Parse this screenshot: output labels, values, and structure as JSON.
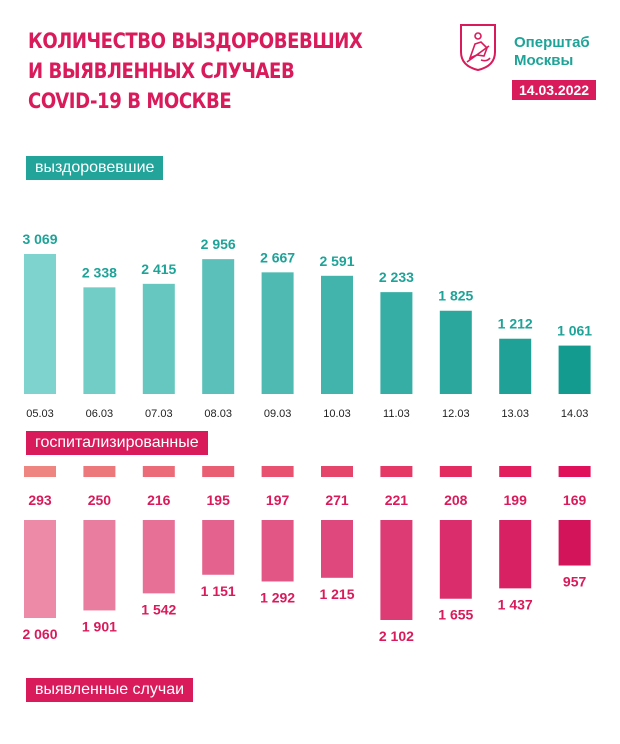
{
  "header": {
    "title_lines": [
      "Количество выздоровевших",
      "и выявленных случаев",
      "COVID-19 в Москве"
    ],
    "logo_line1": "Оперштаб",
    "logo_line2": "Москвы",
    "logo_icon": "moscow-coat-of-arms-icon",
    "date": "14.03.2022"
  },
  "labels": {
    "recovered": "выздоровевшие",
    "hospitalized": "госпитализированные",
    "cases": "выявленные случаи"
  },
  "colors": {
    "brand_pink": "#d91b5c",
    "brand_teal": "#1ea398",
    "recovered_start": "#7ed3ce",
    "recovered_end": "#139b90",
    "pink_start": "#ec8aa8",
    "pink_end": "#d4145a",
    "hosp_start": "#ee8580",
    "hosp_end": "#e0115a"
  },
  "chart_data": [
    {
      "type": "bar",
      "title": "выздоровевшие",
      "categories": [
        "05.03",
        "06.03",
        "07.03",
        "08.03",
        "09.03",
        "10.03",
        "11.03",
        "12.03",
        "13.03",
        "14.03"
      ],
      "values": [
        3069,
        2338,
        2415,
        2956,
        2667,
        2591,
        2233,
        1825,
        1212,
        1061
      ],
      "value_labels": [
        "3 069",
        "2 338",
        "2 415",
        "2 956",
        "2 667",
        "2 591",
        "2 233",
        "1 825",
        "1 212",
        "1 061"
      ],
      "ylim": [
        0,
        3069
      ]
    },
    {
      "type": "bar",
      "title": "госпитализированные",
      "categories": [
        "05.03",
        "06.03",
        "07.03",
        "08.03",
        "09.03",
        "10.03",
        "11.03",
        "12.03",
        "13.03",
        "14.03"
      ],
      "values": [
        293,
        250,
        216,
        195,
        197,
        271,
        221,
        208,
        199,
        169
      ],
      "value_labels": [
        "293",
        "250",
        "216",
        "195",
        "197",
        "271",
        "221",
        "208",
        "199",
        "169"
      ]
    },
    {
      "type": "bar",
      "title": "выявленные случаи",
      "categories": [
        "05.03",
        "06.03",
        "07.03",
        "08.03",
        "09.03",
        "10.03",
        "11.03",
        "12.03",
        "13.03",
        "14.03"
      ],
      "values": [
        2060,
        1901,
        1542,
        1151,
        1292,
        1215,
        2102,
        1655,
        1437,
        957
      ],
      "value_labels": [
        "2 060",
        "1 901",
        "1 542",
        "1 151",
        "1 292",
        "1 215",
        "2 102",
        "1 655",
        "1 437",
        "957"
      ],
      "ylim": [
        0,
        2102
      ]
    }
  ]
}
